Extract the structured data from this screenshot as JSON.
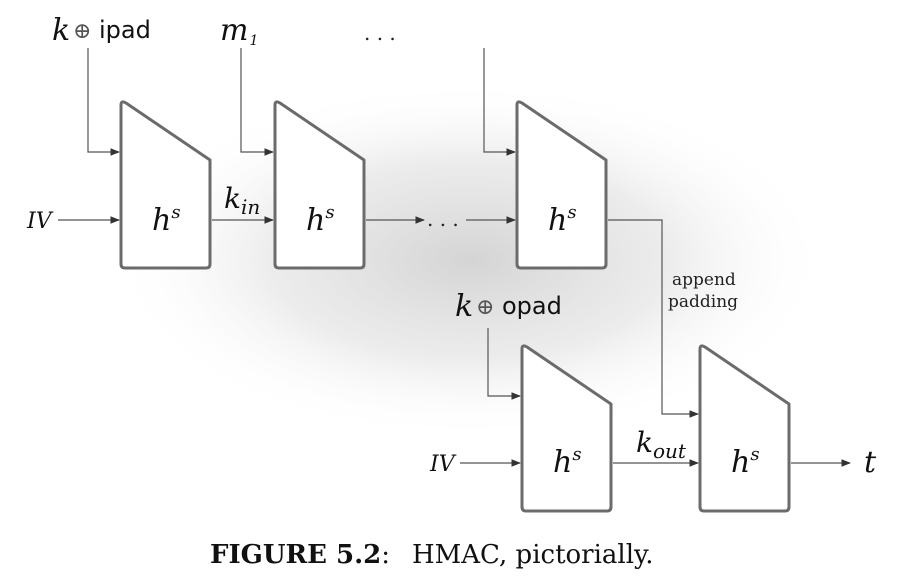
{
  "inputs": {
    "key_ipad_k": "k",
    "key_ipad_op": "⊕",
    "key_ipad_word": "ipad",
    "m1_base": "m",
    "m1_sub": "1",
    "top_dots": ". . .",
    "key_opad_k": "k",
    "key_opad_op": "⊕",
    "key_opad_word": "opad",
    "iv_top": "IV",
    "iv_bottom": "IV"
  },
  "blocks": {
    "h_base": "h",
    "h_sup": "s"
  },
  "links": {
    "k_in_base": "k",
    "k_in_sub": "in",
    "chain_dots": ". . .",
    "k_out_base": "k",
    "k_out_sub": "out"
  },
  "annotation": {
    "line1": "append",
    "line2": "padding"
  },
  "output": {
    "t": "t"
  },
  "caption": {
    "label": "FIGURE 5.2",
    "colon": ":",
    "text": "HMAC, pictorially."
  },
  "colors": {
    "box_stroke": "#6b6b6b",
    "wire": "#555555",
    "halo": "#d9d9d9"
  }
}
